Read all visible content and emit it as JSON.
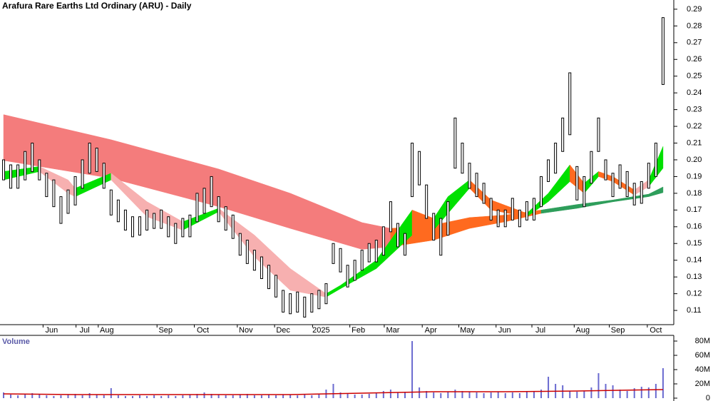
{
  "chart_data": [
    {
      "type": "ohlc",
      "title": "Arafura Rare Earths Ltd Ordinary (ARU) - Daily",
      "xlim": [
        -0.5,
        93.5
      ],
      "xticks": [
        {
          "value": 6.7,
          "label": "Jun"
        },
        {
          "value": 11.3,
          "label": "Jul"
        },
        {
          "value": 14.4,
          "label": "Aug"
        },
        {
          "value": 22.6,
          "label": "Sep"
        },
        {
          "value": 27.8,
          "label": "Oct"
        },
        {
          "value": 33.8,
          "label": "Nov"
        },
        {
          "value": 39,
          "label": "Dec"
        },
        {
          "value": 44.3,
          "label": "2025"
        },
        {
          "value": 49.5,
          "label": "Feb"
        },
        {
          "value": 54.3,
          "label": "Mar"
        },
        {
          "value": 59.6,
          "label": "Apr"
        },
        {
          "value": 64.7,
          "label": "May"
        },
        {
          "value": 69.9,
          "label": "Jun"
        },
        {
          "value": 74.9,
          "label": "Jul"
        },
        {
          "value": 80.8,
          "label": "Aug"
        },
        {
          "value": 85.7,
          "label": "Sep"
        },
        {
          "value": 91,
          "label": "Oct"
        }
      ],
      "ylim": [
        0.1015,
        0.2955
      ],
      "yticks": [
        0.11,
        0.12,
        0.13,
        0.14,
        0.15,
        0.16,
        0.17,
        0.18,
        0.19,
        {
          "value": 0.2,
          "label": "0.20"
        },
        0.21,
        0.22,
        0.23,
        0.24,
        0.25,
        0.26,
        0.27,
        0.28,
        0.29
      ],
      "bar_color": "#000000",
      "high": [
        0.2,
        0.197,
        0.197,
        0.205,
        0.21,
        0.2,
        0.192,
        0.188,
        0.178,
        0.182,
        0.19,
        0.2,
        0.21,
        0.207,
        0.198,
        0.182,
        0.176,
        0.17,
        0.166,
        0.166,
        0.17,
        0.168,
        0.17,
        0.166,
        0.162,
        0.165,
        0.167,
        0.18,
        0.183,
        0.19,
        0.178,
        0.172,
        0.167,
        0.156,
        0.152,
        0.146,
        0.142,
        0.137,
        0.131,
        0.122,
        0.12,
        0.121,
        0.118,
        0.12,
        0.122,
        0.126,
        0.15,
        0.147,
        0.137,
        0.14,
        0.146,
        0.15,
        0.152,
        0.16,
        0.175,
        0.162,
        0.156,
        0.21,
        0.205,
        0.185,
        0.168,
        0.165,
        0.175,
        0.225,
        0.21,
        0.198,
        0.192,
        0.186,
        0.177,
        0.17,
        0.17,
        0.177,
        0.17,
        0.175,
        0.177,
        0.19,
        0.2,
        0.21,
        0.225,
        0.252,
        0.196,
        0.19,
        0.205,
        0.225,
        0.2,
        0.192,
        0.197,
        0.193,
        0.186,
        0.187,
        0.198,
        0.21,
        0.285
      ],
      "low": [
        0.188,
        0.183,
        0.183,
        0.188,
        0.193,
        0.188,
        0.178,
        0.172,
        0.162,
        0.168,
        0.173,
        0.183,
        0.192,
        0.193,
        0.183,
        0.167,
        0.163,
        0.158,
        0.154,
        0.155,
        0.158,
        0.159,
        0.159,
        0.154,
        0.15,
        0.154,
        0.154,
        0.163,
        0.168,
        0.172,
        0.163,
        0.158,
        0.153,
        0.143,
        0.138,
        0.134,
        0.129,
        0.123,
        0.118,
        0.109,
        0.108,
        0.109,
        0.106,
        0.109,
        0.111,
        0.114,
        0.138,
        0.133,
        0.124,
        0.128,
        0.134,
        0.139,
        0.139,
        0.143,
        0.157,
        0.148,
        0.143,
        0.178,
        0.185,
        0.165,
        0.152,
        0.143,
        0.155,
        0.195,
        0.192,
        0.183,
        0.178,
        0.174,
        0.164,
        0.16,
        0.16,
        0.164,
        0.16,
        0.164,
        0.164,
        0.172,
        0.187,
        0.192,
        0.205,
        0.215,
        0.176,
        0.172,
        0.186,
        0.205,
        0.188,
        0.178,
        0.183,
        0.178,
        0.173,
        0.174,
        0.183,
        0.19,
        0.245
      ],
      "ribbons": [
        {
          "x": [
            0,
            15,
            30,
            40,
            50,
            54,
            60,
            65,
            70,
            75,
            80,
            85,
            90,
            92
          ],
          "upper": [
            0.227,
            0.212,
            0.1945,
            0.18,
            0.1625,
            0.159,
            0.161,
            0.1655,
            0.167,
            0.17,
            0.1733,
            0.176,
            0.1795,
            0.1838
          ],
          "lower": [
            0.1996,
            0.189,
            0.172,
            0.159,
            0.1465,
            0.148,
            0.152,
            0.159,
            0.163,
            0.168,
            0.171,
            0.1749,
            0.178,
            0.1804
          ],
          "colors": [
            "#f47c7c",
            "#f47c7c",
            "#f47c7c",
            "#f47c7c",
            "#f47c7c",
            "#ff6a1f",
            "#ff6a1f",
            "#ff6a1f",
            "#ff6a1f",
            "#2e9e5b",
            "#2e9e5b",
            "#2e9e5b",
            "#2e9e5b"
          ]
        },
        {
          "x": [
            0,
            5,
            9,
            10,
            15,
            20,
            25,
            30,
            35,
            40,
            45,
            47,
            52,
            57,
            60,
            62,
            65,
            68,
            73,
            76,
            79,
            81,
            83,
            85,
            88,
            90,
            92
          ],
          "upper": [
            0.193,
            0.196,
            0.188,
            0.183,
            0.192,
            0.175,
            0.163,
            0.171,
            0.155,
            0.135,
            0.12,
            0.125,
            0.14,
            0.17,
            0.165,
            0.178,
            0.188,
            0.176,
            0.168,
            0.18,
            0.197,
            0.186,
            0.193,
            0.19,
            0.182,
            0.188,
            0.208
          ],
          "lower": [
            0.188,
            0.193,
            0.18,
            0.178,
            0.188,
            0.166,
            0.158,
            0.169,
            0.142,
            0.122,
            0.118,
            0.123,
            0.135,
            0.155,
            0.158,
            0.168,
            0.183,
            0.17,
            0.166,
            0.175,
            0.187,
            0.18,
            0.19,
            0.187,
            0.179,
            0.184,
            0.195
          ],
          "colors": [
            "#00e000",
            "#f7b0b0",
            "#f7b0b0",
            "#00e000",
            "#f7b0b0",
            "#f7b0b0",
            "#00e000",
            "#f7b0b0",
            "#f7b0b0",
            "#f7b0b0",
            "#00e000",
            "#00e000",
            "#00e000",
            "#ff6a1f",
            "#00e000",
            "#00e000",
            "#ff6a1f",
            "#ff6a1f",
            "#00e000",
            "#00e000",
            "#ff6a1f",
            "#00e000",
            "#ff6a1f",
            "#ff6a1f",
            "#f7b0b0",
            "#00e000"
          ]
        }
      ]
    },
    {
      "type": "bar",
      "title": "Volume",
      "xlim": [
        -0.5,
        93.5
      ],
      "ylim": [
        0,
        88
      ],
      "yticks": [
        0,
        {
          "value": 20,
          "label": "20M"
        },
        {
          "value": 40,
          "label": "40M"
        },
        {
          "value": 60,
          "label": "60M"
        },
        {
          "value": 80,
          "label": "80M"
        }
      ],
      "color": "#6a6ad0",
      "values": [
        8,
        5,
        4,
        6,
        7,
        5,
        4,
        3,
        4,
        5,
        6,
        4,
        7,
        5,
        4,
        14,
        4,
        3,
        3,
        4,
        3,
        4,
        3,
        4,
        3,
        4,
        5,
        6,
        8,
        6,
        5,
        4,
        4,
        5,
        6,
        4,
        4,
        5,
        4,
        5,
        5,
        4,
        5,
        4,
        6,
        12,
        20,
        8,
        6,
        5,
        5,
        6,
        8,
        10,
        12,
        8,
        9,
        80,
        15,
        10,
        8,
        7,
        9,
        12,
        10,
        9,
        8,
        7,
        8,
        9,
        7,
        8,
        7,
        9,
        10,
        12,
        30,
        20,
        18,
        10,
        9,
        10,
        15,
        35,
        20,
        18,
        12,
        10,
        14,
        16,
        15,
        20,
        42
      ],
      "series": [
        {
          "color": "#cc0000",
          "x": [
            0,
            10,
            20,
            30,
            40,
            50,
            60,
            70,
            80,
            92
          ],
          "values": [
            6,
            5,
            5,
            5,
            5,
            7,
            9,
            9,
            10,
            12
          ]
        }
      ]
    }
  ]
}
